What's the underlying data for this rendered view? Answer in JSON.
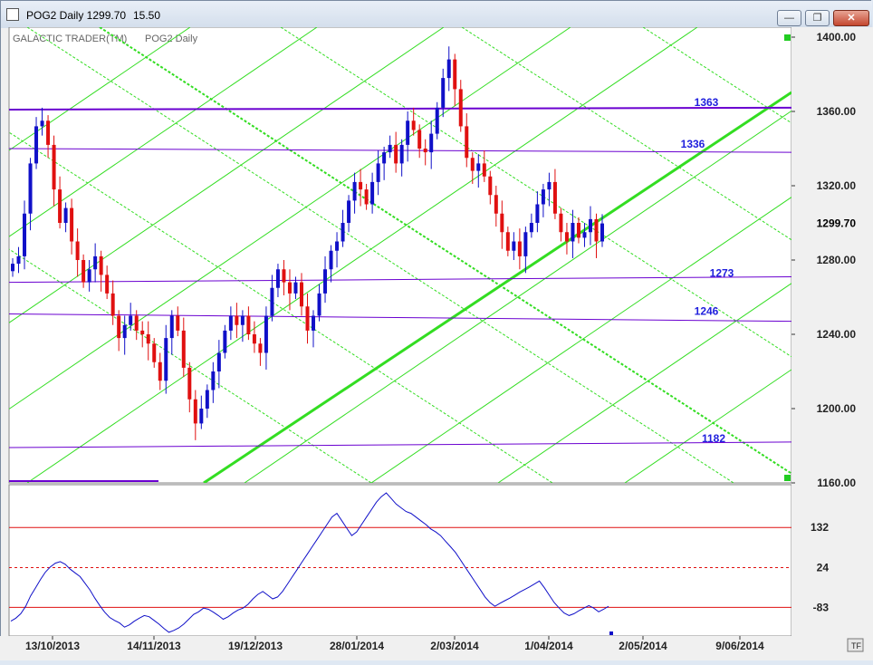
{
  "window": {
    "title": "POG2 Daily 1299.70",
    "change": "15.50",
    "buttons": {
      "minimize": "—",
      "maximize": "❐",
      "close": "✕"
    }
  },
  "chart_header": {
    "vendor": "GALACTIC TRADER(TM)",
    "instrument": "POG2 Daily"
  },
  "colors": {
    "up": "#1010c8",
    "down": "#e01010",
    "resistance": "#6a00d0",
    "gann": "#33dd22",
    "oscillator": "#1010c8",
    "levels": "#e01010",
    "grid_bg": "#ffffff"
  },
  "chart_data": [
    {
      "type": "candlestick",
      "title": "POG2 Daily",
      "ylim": [
        1160,
        1400
      ],
      "y_ticks": [
        "1400.00",
        "1360.00",
        "1320.00",
        "1280.00",
        "1240.00",
        "1200.00",
        "1160.00"
      ],
      "last_price": "1299.70",
      "x_ticks": [
        "13/10/2013",
        "14/11/2013",
        "19/12/2013",
        "28/01/2014",
        "2/03/2014",
        "1/04/2014",
        "2/05/2014",
        "9/06/2014"
      ],
      "horizontal_lines": [
        {
          "label": "1363",
          "start": 1361,
          "end": 1362
        },
        {
          "label": "1336",
          "start": 1340,
          "end": 1338
        },
        {
          "label": "1273",
          "start": 1268,
          "end": 1271
        },
        {
          "label": "1246",
          "start": 1251,
          "end": 1247
        },
        {
          "label": "1182",
          "start": 1179,
          "end": 1182
        }
      ],
      "closes": [
        1278,
        1282,
        1305,
        1332,
        1352,
        1355,
        1342,
        1318,
        1300,
        1308,
        1290,
        1280,
        1268,
        1275,
        1282,
        1272,
        1262,
        1250,
        1238,
        1245,
        1250,
        1242,
        1240,
        1235,
        1225,
        1215,
        1238,
        1250,
        1242,
        1222,
        1205,
        1192,
        1200,
        1210,
        1220,
        1230,
        1242,
        1250,
        1245,
        1250,
        1240,
        1235,
        1230,
        1250,
        1265,
        1275,
        1268,
        1262,
        1268,
        1255,
        1242,
        1250,
        1262,
        1275,
        1285,
        1290,
        1300,
        1312,
        1322,
        1318,
        1310,
        1322,
        1332,
        1338,
        1342,
        1332,
        1342,
        1355,
        1350,
        1340,
        1338,
        1348,
        1362,
        1378,
        1388,
        1372,
        1352,
        1335,
        1328,
        1332,
        1325,
        1315,
        1305,
        1295,
        1285,
        1290,
        1282,
        1295,
        1300,
        1310,
        1318,
        1322,
        1305,
        1295,
        1290,
        1300,
        1292,
        1295,
        1302,
        1290,
        1299.7
      ],
      "gann_lines": [
        {
          "style": "thick",
          "from": [
            "13/12/2013",
            1160
          ],
          "to": [
            "29/05/2014",
            1370
          ]
        },
        {
          "style": "thin",
          "direction": "up",
          "count": 9
        },
        {
          "style": "thin",
          "direction": "down",
          "count": 7
        }
      ]
    },
    {
      "type": "line",
      "title": "oscillator",
      "y_ticks": [
        "132",
        "24",
        "-83"
      ],
      "levels": [
        {
          "value": 132,
          "style": "solid"
        },
        {
          "value": 24,
          "style": "dashed"
        },
        {
          "value": -83,
          "style": "solid"
        }
      ],
      "series": [
        {
          "values": [
            -120,
            -112,
            -100,
            -80,
            -52,
            -30,
            -8,
            12,
            26,
            36,
            40,
            33,
            20,
            10,
            0,
            -18,
            -36,
            -58,
            -78,
            -96,
            -110,
            -118,
            -125,
            -136,
            -130,
            -120,
            -112,
            -105,
            -108,
            -118,
            -128,
            -140,
            -150,
            -145,
            -138,
            -128,
            -115,
            -102,
            -95,
            -85,
            -88,
            -96,
            -105,
            -115,
            -108,
            -98,
            -90,
            -85,
            -75,
            -60,
            -48,
            -40,
            -50,
            -60,
            -55,
            -40,
            -20,
            0,
            20,
            40,
            60,
            80,
            100,
            120,
            140,
            160,
            170,
            150,
            130,
            110,
            120,
            140,
            160,
            180,
            200,
            215,
            225,
            210,
            195,
            185,
            175,
            170,
            160,
            150,
            140,
            128,
            120,
            110,
            95,
            80,
            65,
            45,
            25,
            5,
            -15,
            -35,
            -55,
            -70,
            -80,
            -72,
            -65,
            -58,
            -50,
            -42,
            -35,
            -28,
            -20,
            -12,
            -30,
            -50,
            -70,
            -85,
            -98,
            -105,
            -100,
            -92,
            -85,
            -78,
            -85,
            -95,
            -88,
            -80
          ]
        }
      ]
    }
  ]
}
